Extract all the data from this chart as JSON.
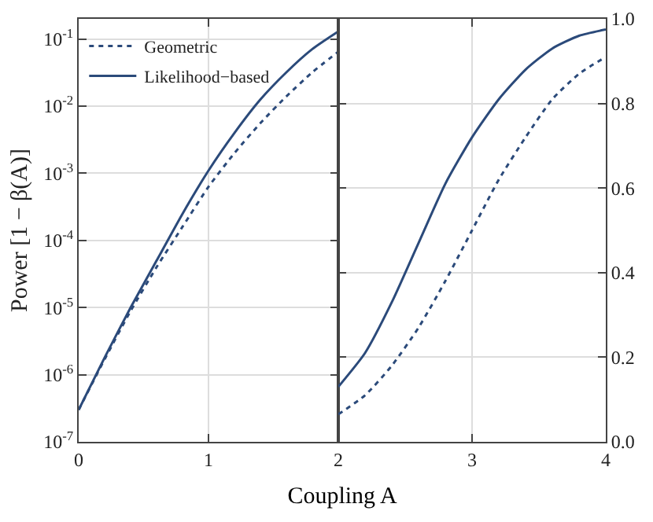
{
  "chart_data": [
    {
      "type": "line",
      "xlabel": "Coupling A",
      "ylabel": "Power [1 − β(A)]",
      "log": "y",
      "grid": true,
      "legend": "top left",
      "marker": "none",
      "x": [
        0,
        0.2,
        0.4,
        0.6,
        0.8,
        1.0,
        1.2,
        1.4,
        1.6,
        1.8,
        2.0
      ],
      "xlim": [
        0,
        2
      ],
      "xticks": [
        0,
        1,
        {
          "value": 2,
          "label": null
        }
      ],
      "ylim": [
        1e-07,
        0.2
      ],
      "yticks": [
        {
          "value": 1e-07,
          "label": "10$^{-7}$"
        },
        {
          "value": 1e-06,
          "label": "10$^{-6}$"
        },
        {
          "value": 1e-05,
          "label": "10$^{-5}$"
        },
        {
          "value": 0.0001,
          "label": "10$^{-4}$"
        },
        {
          "value": 0.001,
          "label": "10$^{-3}$"
        },
        {
          "value": 0.01,
          "label": "10$^{-2}$"
        },
        {
          "value": 0.1,
          "label": "10$^{-1}$"
        }
      ],
      "series": [
        {
          "name": "Geometric",
          "color": "#2b4a7a",
          "line_style": "dotted",
          "values": [
            3e-07,
            1.7e-06,
            8.9e-06,
            4e-05,
            0.00016,
            0.00063,
            0.002,
            0.0056,
            0.014,
            0.032,
            0.065
          ]
        },
        {
          "name": "Likelihood−based",
          "color": "#2b4a7a",
          "line_style": "solid",
          "values": [
            3e-07,
            1.8e-06,
            1e-05,
            5e-05,
            0.00025,
            0.0011,
            0.004,
            0.0126,
            0.032,
            0.071,
            0.13
          ]
        }
      ]
    },
    {
      "type": "line",
      "grid": true,
      "marker": "none",
      "x": [
        2.0,
        2.2,
        2.4,
        2.6,
        2.8,
        3.0,
        3.2,
        3.4,
        3.6,
        3.8,
        4.0
      ],
      "xlim": [
        2,
        4
      ],
      "xticks": [
        2,
        3,
        4
      ],
      "ylim": [
        0,
        1
      ],
      "yticks": [
        {
          "value": 0,
          "label": "0.0"
        },
        {
          "value": 0.2,
          "label": "0.2"
        },
        {
          "value": 0.4,
          "label": "0.4"
        },
        {
          "value": 0.6,
          "label": "0.6"
        },
        {
          "value": 0.8,
          "label": "0.8"
        },
        {
          "value": 1,
          "label": "1.0"
        }
      ],
      "series": [
        {
          "color": "#2b4a7a",
          "line_style": "dotted",
          "values": [
            0.065,
            0.11,
            0.18,
            0.27,
            0.38,
            0.5,
            0.62,
            0.72,
            0.81,
            0.87,
            0.91
          ]
        },
        {
          "color": "#2b4a7a",
          "line_style": "solid",
          "values": [
            0.13,
            0.21,
            0.33,
            0.47,
            0.61,
            0.72,
            0.81,
            0.88,
            0.93,
            0.96,
            0.975
          ]
        }
      ]
    }
  ]
}
